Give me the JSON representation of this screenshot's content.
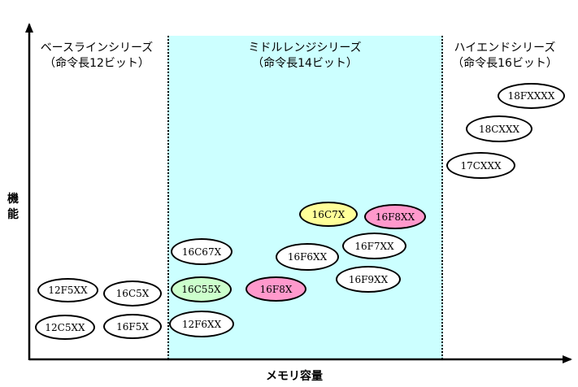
{
  "series": {
    "baseline": {
      "name": "ベースラインシリーズ",
      "sub": "（命令長12ビット）"
    },
    "midrange": {
      "name": "ミドルレンジシリーズ",
      "sub": "（命令長14ビット）"
    },
    "highend": {
      "name": "ハイエンドシリーズ",
      "sub": "（命令長16ビット）"
    }
  },
  "axes": {
    "y_label_1": "機",
    "y_label_2": "能",
    "x_label": "メモリ容量"
  },
  "colors": {
    "midrange_band": "#ccffff",
    "yellow": "#ffff99",
    "pink": "#ff99cc",
    "green": "#ccffcc",
    "white": "#ffffff"
  },
  "families": {
    "f12f5xx": {
      "label": "12F5XX",
      "fill": "white"
    },
    "f12c5xx": {
      "label": "12C5XX",
      "fill": "white"
    },
    "f16c5x": {
      "label": "16C5X",
      "fill": "white"
    },
    "f16f5x": {
      "label": "16F5X",
      "fill": "white"
    },
    "f16c67x": {
      "label": "16C67X",
      "fill": "white"
    },
    "f16c55x": {
      "label": "16C55X",
      "fill": "green"
    },
    "f12f6xx": {
      "label": "12F6XX",
      "fill": "white"
    },
    "f16c7x": {
      "label": "16C7X",
      "fill": "yellow"
    },
    "f16f8xx": {
      "label": "16F8XX",
      "fill": "pink"
    },
    "f16f6xx": {
      "label": "16F6XX",
      "fill": "white"
    },
    "f16f7xx": {
      "label": "16F7XX",
      "fill": "white"
    },
    "f16f8x": {
      "label": "16F8X",
      "fill": "pink"
    },
    "f16f9xx": {
      "label": "16F9XX",
      "fill": "white"
    },
    "f18fxxxx": {
      "label": "18FXXXX",
      "fill": "white"
    },
    "f18cxxx": {
      "label": "18CXXX",
      "fill": "white"
    },
    "f17cxxx": {
      "label": "17CXXX",
      "fill": "white"
    }
  }
}
